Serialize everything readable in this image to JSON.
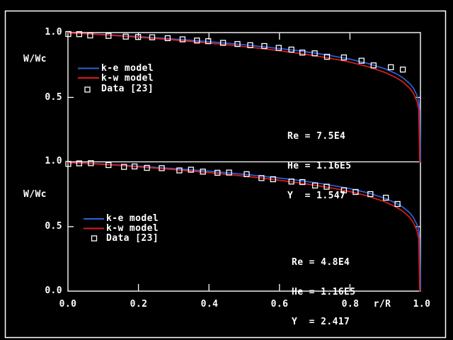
{
  "colors": {
    "background": "#000000",
    "foreground": "#ffffff",
    "ke_model_blue": "#2e62d8",
    "kw_model_red": "#dd1c1c",
    "data_marker": "#ffffff"
  },
  "chart_data": [
    {
      "type": "line",
      "title": "",
      "ylabel": "W/Wc",
      "xlabel": "r/R",
      "xlim": [
        0,
        1
      ],
      "ylim": [
        0,
        1
      ],
      "grid": false,
      "legend_position": "upper-left-inside",
      "xticks": [
        0,
        0.2,
        0.4,
        0.6,
        0.8,
        1
      ],
      "yticks": [
        1.0,
        0.5
      ],
      "ytick_labels": [
        "1.0",
        "0.5"
      ],
      "legend": [
        "k-e model",
        "k-w model",
        "Data [23]"
      ],
      "annotation": [
        "Re = 7.5E4",
        "He = 1.16E5",
        "Y  = 1.547"
      ],
      "series": [
        {
          "name": "k-e model",
          "type": "line",
          "color": "#2e62d8",
          "x": [
            0,
            0.05,
            0.1,
            0.15,
            0.2,
            0.25,
            0.3,
            0.35,
            0.4,
            0.45,
            0.5,
            0.55,
            0.6,
            0.65,
            0.7,
            0.75,
            0.8,
            0.85,
            0.9,
            0.93,
            0.95,
            0.97,
            0.98,
            0.99,
            0.995,
            0.998,
            1.0
          ],
          "y": [
            0.996,
            0.992,
            0.985,
            0.977,
            0.969,
            0.96,
            0.95,
            0.94,
            0.93,
            0.918,
            0.906,
            0.892,
            0.877,
            0.861,
            0.842,
            0.82,
            0.795,
            0.763,
            0.72,
            0.684,
            0.652,
            0.606,
            0.572,
            0.518,
            0.469,
            0.4,
            0.005
          ]
        },
        {
          "name": "k-w model",
          "type": "line",
          "color": "#dd1c1c",
          "x": [
            0,
            0.05,
            0.1,
            0.15,
            0.2,
            0.25,
            0.3,
            0.35,
            0.4,
            0.45,
            0.5,
            0.55,
            0.6,
            0.65,
            0.7,
            0.75,
            0.8,
            0.85,
            0.9,
            0.93,
            0.95,
            0.97,
            0.98,
            0.99,
            0.995,
            0.998,
            1.0
          ],
          "y": [
            0.996,
            0.991,
            0.983,
            0.974,
            0.964,
            0.954,
            0.943,
            0.931,
            0.919,
            0.906,
            0.892,
            0.877,
            0.86,
            0.842,
            0.822,
            0.799,
            0.772,
            0.738,
            0.692,
            0.654,
            0.62,
            0.57,
            0.532,
            0.472,
            0.41,
            0.0,
            0.0
          ]
        },
        {
          "name": "Data [23]",
          "type": "scatter",
          "marker": "open-square",
          "color": "#ffffff",
          "x": [
            0.001,
            0.032,
            0.063,
            0.115,
            0.164,
            0.199,
            0.239,
            0.283,
            0.325,
            0.366,
            0.398,
            0.44,
            0.481,
            0.517,
            0.557,
            0.598,
            0.634,
            0.665,
            0.7,
            0.735,
            0.783,
            0.833,
            0.867,
            0.916,
            0.95
          ],
          "y": [
            0.989,
            0.988,
            0.978,
            0.975,
            0.969,
            0.966,
            0.964,
            0.957,
            0.948,
            0.939,
            0.934,
            0.921,
            0.912,
            0.903,
            0.896,
            0.882,
            0.869,
            0.846,
            0.84,
            0.813,
            0.808,
            0.783,
            0.747,
            0.733,
            0.715
          ]
        }
      ]
    },
    {
      "type": "line",
      "title": "",
      "ylabel": "W/Wc",
      "xlabel": "r/R",
      "xlim": [
        0,
        1
      ],
      "ylim": [
        0,
        1
      ],
      "grid": false,
      "legend_position": "upper-left-inside",
      "xticks": [
        0,
        0.2,
        0.4,
        0.6,
        0.8,
        1
      ],
      "xtick_labels": [
        "0.0",
        "0.2",
        "0.4",
        "0.6",
        "0.8",
        "1.0"
      ],
      "yticks": [
        1.0,
        0.5,
        0.0
      ],
      "ytick_labels": [
        "1.0",
        "0.5",
        "0.0"
      ],
      "legend": [
        "k-e model",
        "k-w model",
        "Data [23]"
      ],
      "annotation": [
        "Re = 4.8E4",
        "He = 1.16E5",
        "Y  = 2.417"
      ],
      "series": [
        {
          "name": "k-e model",
          "type": "line",
          "color": "#2e62d8",
          "x": [
            0,
            0.05,
            0.1,
            0.15,
            0.2,
            0.25,
            0.3,
            0.35,
            0.4,
            0.45,
            0.5,
            0.55,
            0.6,
            0.65,
            0.7,
            0.75,
            0.8,
            0.85,
            0.9,
            0.93,
            0.95,
            0.97,
            0.98,
            0.99,
            0.995,
            0.998,
            1.0
          ],
          "y": [
            0.996,
            0.992,
            0.985,
            0.977,
            0.969,
            0.96,
            0.95,
            0.94,
            0.93,
            0.918,
            0.906,
            0.892,
            0.877,
            0.861,
            0.842,
            0.82,
            0.795,
            0.763,
            0.72,
            0.684,
            0.652,
            0.606,
            0.572,
            0.518,
            0.469,
            0.4,
            0.005
          ]
        },
        {
          "name": "k-w model",
          "type": "line",
          "color": "#dd1c1c",
          "x": [
            0,
            0.05,
            0.1,
            0.15,
            0.2,
            0.25,
            0.3,
            0.35,
            0.4,
            0.45,
            0.5,
            0.55,
            0.6,
            0.65,
            0.7,
            0.75,
            0.8,
            0.85,
            0.9,
            0.93,
            0.95,
            0.97,
            0.98,
            0.99,
            0.995,
            0.998,
            1.0
          ],
          "y": [
            0.996,
            0.991,
            0.983,
            0.974,
            0.964,
            0.954,
            0.943,
            0.931,
            0.919,
            0.906,
            0.892,
            0.877,
            0.86,
            0.842,
            0.822,
            0.799,
            0.772,
            0.738,
            0.692,
            0.654,
            0.62,
            0.57,
            0.532,
            0.472,
            0.41,
            0.0,
            0.0
          ]
        },
        {
          "name": "Data [23]",
          "type": "scatter",
          "marker": "open-square",
          "color": "#ffffff",
          "x": [
            0.001,
            0.032,
            0.065,
            0.115,
            0.159,
            0.189,
            0.224,
            0.266,
            0.316,
            0.349,
            0.383,
            0.424,
            0.457,
            0.507,
            0.549,
            0.582,
            0.634,
            0.665,
            0.701,
            0.734,
            0.783,
            0.816,
            0.858,
            0.902,
            0.935
          ],
          "y": [
            0.987,
            0.991,
            0.993,
            0.978,
            0.964,
            0.967,
            0.956,
            0.954,
            0.936,
            0.942,
            0.927,
            0.918,
            0.92,
            0.907,
            0.877,
            0.868,
            0.85,
            0.846,
            0.819,
            0.81,
            0.782,
            0.769,
            0.753,
            0.725,
            0.676
          ]
        }
      ]
    }
  ]
}
